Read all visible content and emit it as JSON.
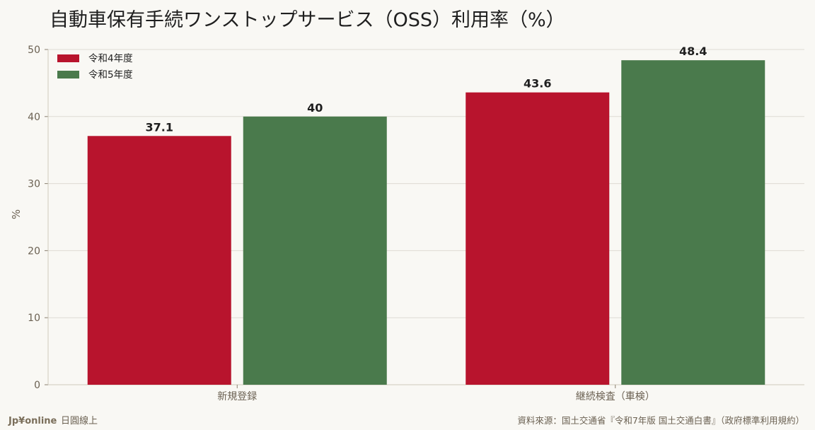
{
  "colors": {
    "background": "#f9f8f4",
    "series_1": "#b8142d",
    "series_2": "#4a7a4c",
    "grid": "#dedbd3",
    "axis_text": "#6b6152",
    "title_text": "#1f1f1f"
  },
  "footer": {
    "brand": "Jp¥online",
    "brand_suffix": "日圓線上",
    "source": "資料來源：国土交通省『令和7年版 国土交通白書』（政府標準利用規約）"
  },
  "chart_data": {
    "type": "bar",
    "title": "自動車保有手続ワンストップサービス（OSS）利用率（%）",
    "xlabel": "",
    "ylabel": "%",
    "categories": [
      "新規登録",
      "継続検査（車検）"
    ],
    "series": [
      {
        "name": "令和4年度",
        "values": [
          37.1,
          43.6
        ]
      },
      {
        "name": "令和5年度",
        "values": [
          40,
          48.4
        ]
      }
    ],
    "ylim": [
      0,
      50
    ],
    "yticks": [
      0,
      10,
      20,
      30,
      40,
      50
    ],
    "grid": true,
    "legend_position": "top-left",
    "data_labels": true
  }
}
